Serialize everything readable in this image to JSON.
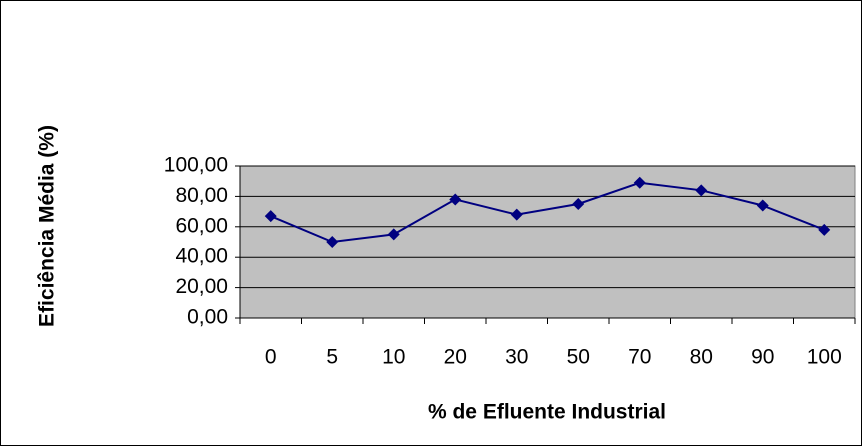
{
  "chart_data": {
    "type": "line",
    "x_label": "% de Efluente Industrial",
    "y_label": "Eficiência Média (%)",
    "categories": [
      "0",
      "5",
      "10",
      "20",
      "30",
      "50",
      "70",
      "80",
      "90",
      "100"
    ],
    "values": [
      67,
      50,
      55,
      78,
      68,
      75,
      89,
      84,
      74,
      58
    ],
    "color": "#000080",
    "ylim": [
      0,
      100
    ],
    "yticks": [
      {
        "value": 0,
        "label": "0,00"
      },
      {
        "value": 20,
        "label": "20,00"
      },
      {
        "value": 40,
        "label": "40,00"
      },
      {
        "value": 60,
        "label": "60,00"
      },
      {
        "value": 80,
        "label": "80,00"
      },
      {
        "value": 100,
        "label": "100,00"
      }
    ],
    "grid": true
  }
}
